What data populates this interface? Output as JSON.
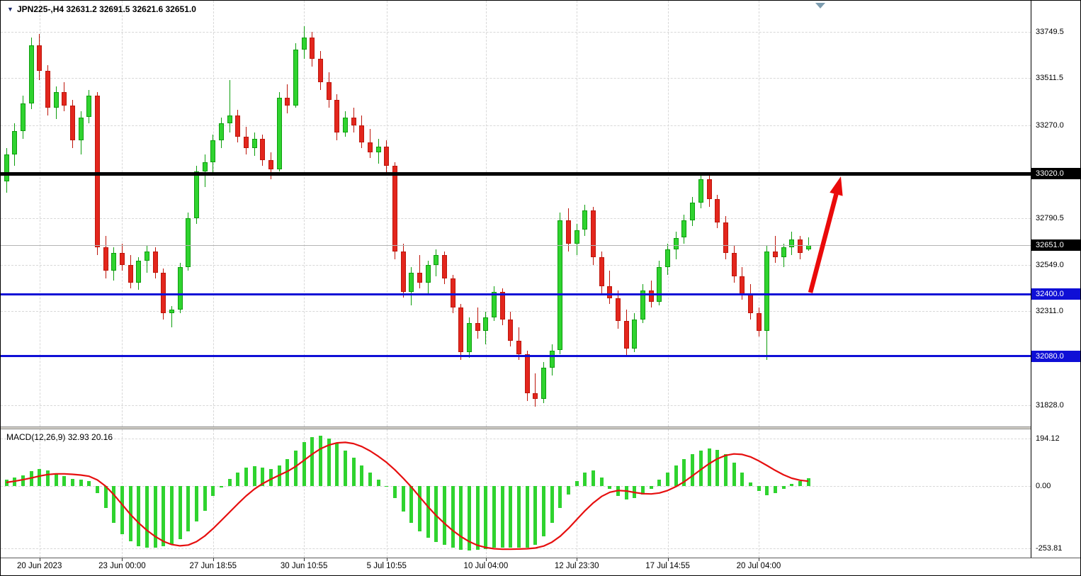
{
  "header": {
    "symbol_line": "JPN225-,H4 32631.2 32691.5 32621.6 32651.0"
  },
  "chart_data": [
    {
      "type": "candlestick",
      "title": "JPN225-,H4",
      "last_ohlc": {
        "open": 32631.2,
        "high": 32691.5,
        "low": 32621.6,
        "close": 32651.0
      },
      "ylim": [
        31718,
        33910
      ],
      "up_color": "#2fd32f",
      "down_color": "#e3261d",
      "up_wick_color": "#0d9e0d",
      "down_wick_color": "#bd150a",
      "y_ticks": [
        {
          "label": "33749.5",
          "value": 33749.5
        },
        {
          "label": "33511.5",
          "value": 33511.5
        },
        {
          "label": "33270.0",
          "value": 33270.0
        },
        {
          "label": "32790.5",
          "value": 32790.5
        },
        {
          "label": "32549.0",
          "value": 32549.0
        },
        {
          "label": "32311.0",
          "value": 32311.0
        },
        {
          "label": "31828.0",
          "value": 31828.0
        }
      ],
      "price_lines": [
        {
          "label": "33020.0",
          "value": 33020.0,
          "line_color": "#000000",
          "badge_color": "#000000",
          "thickness": 5
        },
        {
          "label": "32651.0",
          "value": 32651.0,
          "line_color": "#b4b4b4",
          "badge_color": "#000000",
          "thickness": 1
        },
        {
          "label": "32400.0",
          "value": 32400.0,
          "line_color": "#0f0fd6",
          "badge_color": "#0f0fd6",
          "thickness": 3
        },
        {
          "label": "32080.0",
          "value": 32080.0,
          "line_color": "#0f0fd6",
          "badge_color": "#0f0fd6",
          "thickness": 3
        }
      ],
      "x_ticks": [
        {
          "label": "20 Jun 2023",
          "index": 4
        },
        {
          "label": "23 Jun 00:00",
          "index": 14
        },
        {
          "label": "27 Jun 18:55",
          "index": 25
        },
        {
          "label": "30 Jun 10:55",
          "index": 36
        },
        {
          "label": "5 Jul 10:55",
          "index": 46
        },
        {
          "label": "10 Jul 04:00",
          "index": 58
        },
        {
          "label": "12 Jul 23:30",
          "index": 69
        },
        {
          "label": "17 Jul 14:55",
          "index": 80
        },
        {
          "label": "20 Jul 04:00",
          "index": 91
        }
      ],
      "candles": [
        [
          32980,
          33150,
          32920,
          33120
        ],
        [
          33120,
          33280,
          33060,
          33240
        ],
        [
          33240,
          33420,
          33200,
          33380
        ],
        [
          33380,
          33720,
          33350,
          33680
        ],
        [
          33680,
          33740,
          33500,
          33550
        ],
        [
          33550,
          33580,
          33320,
          33360
        ],
        [
          33360,
          33470,
          33300,
          33440
        ],
        [
          33440,
          33490,
          33340,
          33370
        ],
        [
          33370,
          33400,
          33150,
          33190
        ],
        [
          33190,
          33340,
          33120,
          33310
        ],
        [
          33310,
          33450,
          33280,
          33420
        ],
        [
          33420,
          33440,
          32600,
          32640
        ],
        [
          32640,
          32700,
          32480,
          32520
        ],
        [
          32520,
          32640,
          32470,
          32610
        ],
        [
          32610,
          32660,
          32520,
          32550
        ],
        [
          32550,
          32600,
          32430,
          32460
        ],
        [
          32460,
          32590,
          32420,
          32570
        ],
        [
          32570,
          32650,
          32510,
          32620
        ],
        [
          32620,
          32640,
          32480,
          32510
        ],
        [
          32510,
          32530,
          32270,
          32300
        ],
        [
          32300,
          32340,
          32230,
          32320
        ],
        [
          32320,
          32560,
          32300,
          32540
        ],
        [
          32540,
          32820,
          32520,
          32790
        ],
        [
          32790,
          33060,
          32760,
          33030
        ],
        [
          33030,
          33120,
          32950,
          33080
        ],
        [
          33080,
          33220,
          33010,
          33190
        ],
        [
          33190,
          33310,
          33150,
          33280
        ],
        [
          33280,
          33500,
          33230,
          33320
        ],
        [
          33320,
          33350,
          33180,
          33210
        ],
        [
          33210,
          33260,
          33120,
          33150
        ],
        [
          33150,
          33230,
          33110,
          33200
        ],
        [
          33200,
          33220,
          33060,
          33090
        ],
        [
          33090,
          33130,
          32990,
          33040
        ],
        [
          33040,
          33440,
          33030,
          33410
        ],
        [
          33410,
          33480,
          33330,
          33370
        ],
        [
          33370,
          33690,
          33360,
          33660
        ],
        [
          33660,
          33780,
          33610,
          33720
        ],
        [
          33720,
          33750,
          33570,
          33610
        ],
        [
          33610,
          33650,
          33450,
          33490
        ],
        [
          33490,
          33540,
          33360,
          33400
        ],
        [
          33400,
          33430,
          33190,
          33230
        ],
        [
          33230,
          33340,
          33210,
          33310
        ],
        [
          33310,
          33360,
          33230,
          33270
        ],
        [
          33270,
          33320,
          33150,
          33180
        ],
        [
          33180,
          33250,
          33100,
          33130
        ],
        [
          33130,
          33200,
          33070,
          33160
        ],
        [
          33160,
          33190,
          33020,
          33060
        ],
        [
          33060,
          33080,
          32580,
          32620
        ],
        [
          32620,
          32660,
          32380,
          32410
        ],
        [
          32410,
          32540,
          32340,
          32510
        ],
        [
          32510,
          32600,
          32430,
          32460
        ],
        [
          32460,
          32570,
          32400,
          32550
        ],
        [
          32550,
          32630,
          32490,
          32600
        ],
        [
          32600,
          32620,
          32450,
          32480
        ],
        [
          32480,
          32500,
          32300,
          32330
        ],
        [
          32330,
          32350,
          32060,
          32100
        ],
        [
          32100,
          32280,
          32070,
          32250
        ],
        [
          32250,
          32330,
          32170,
          32210
        ],
        [
          32210,
          32310,
          32140,
          32280
        ],
        [
          32280,
          32440,
          32260,
          32410
        ],
        [
          32410,
          32430,
          32240,
          32270
        ],
        [
          32270,
          32310,
          32130,
          32160
        ],
        [
          32160,
          32230,
          32060,
          32090
        ],
        [
          32090,
          32110,
          31850,
          31890
        ],
        [
          31890,
          31990,
          31820,
          31860
        ],
        [
          31860,
          32050,
          31840,
          32020
        ],
        [
          32020,
          32140,
          31980,
          32110
        ],
        [
          32110,
          32820,
          32090,
          32780
        ],
        [
          32780,
          32840,
          32620,
          32660
        ],
        [
          32660,
          32760,
          32600,
          32730
        ],
        [
          32730,
          32860,
          32700,
          32830
        ],
        [
          32830,
          32850,
          32550,
          32590
        ],
        [
          32590,
          32620,
          32400,
          32440
        ],
        [
          32440,
          32520,
          32350,
          32380
        ],
        [
          32380,
          32420,
          32220,
          32260
        ],
        [
          32260,
          32320,
          32080,
          32120
        ],
        [
          32120,
          32300,
          32100,
          32270
        ],
        [
          32270,
          32450,
          32250,
          32420
        ],
        [
          32420,
          32470,
          32330,
          32360
        ],
        [
          32360,
          32570,
          32340,
          32540
        ],
        [
          32540,
          32660,
          32500,
          32630
        ],
        [
          32630,
          32720,
          32580,
          32690
        ],
        [
          32690,
          32810,
          32660,
          32780
        ],
        [
          32780,
          32900,
          32750,
          32870
        ],
        [
          32870,
          33020,
          32840,
          32990
        ],
        [
          32990,
          33010,
          32850,
          32890
        ],
        [
          32890,
          32910,
          32740,
          32770
        ],
        [
          32770,
          32800,
          32580,
          32610
        ],
        [
          32610,
          32650,
          32460,
          32490
        ],
        [
          32490,
          32540,
          32370,
          32400
        ],
        [
          32400,
          32450,
          32270,
          32300
        ],
        [
          32300,
          32330,
          32180,
          32210
        ],
        [
          32210,
          32650,
          32060,
          32620
        ],
        [
          32620,
          32700,
          32560,
          32590
        ],
        [
          32590,
          32660,
          32540,
          32640
        ],
        [
          32640,
          32720,
          32600,
          32680
        ],
        [
          32680,
          32700,
          32580,
          32610
        ],
        [
          32631.2,
          32691.5,
          32621.6,
          32651.0
        ]
      ],
      "trend_arrow": {
        "from": [
          1143,
          412
        ],
        "to": [
          1186,
          248
        ],
        "color": "#ea0a0a"
      }
    },
    {
      "type": "bar",
      "title": "MACD(12,26,9) 32.93 20.16",
      "indicator": "MACD",
      "params": [
        12,
        26,
        9
      ],
      "macd_value": 32.93,
      "signal_value": 20.16,
      "ylim": [
        -291,
        231
      ],
      "histogram_color": "#2fd32f",
      "signal_color": "#e60f0f",
      "y_ticks": [
        {
          "label": "194.12",
          "value": 194.12
        },
        {
          "label": "0.00",
          "value": 0
        },
        {
          "label": "-253.81",
          "value": -253.81
        }
      ],
      "histogram": [
        25,
        35,
        45,
        60,
        70,
        65,
        50,
        40,
        30,
        25,
        20,
        -30,
        -90,
        -150,
        -195,
        -225,
        -245,
        -252,
        -250,
        -245,
        -235,
        -215,
        -185,
        -145,
        -100,
        -40,
        -5,
        30,
        55,
        75,
        80,
        75,
        70,
        85,
        110,
        145,
        180,
        200,
        205,
        195,
        175,
        145,
        115,
        85,
        55,
        25,
        0,
        -50,
        -105,
        -150,
        -185,
        -210,
        -228,
        -240,
        -252,
        -260,
        -262,
        -260,
        -256,
        -252,
        -250,
        -250,
        -252,
        -250,
        -240,
        -205,
        -150,
        -90,
        -35,
        20,
        55,
        65,
        35,
        -10,
        -40,
        -55,
        -50,
        -35,
        -10,
        25,
        55,
        85,
        110,
        130,
        145,
        152,
        148,
        130,
        95,
        55,
        15,
        -20,
        -36,
        -30,
        -12,
        8,
        22,
        33
      ],
      "signal": [
        15,
        20,
        26,
        33,
        41,
        47,
        50,
        50,
        48,
        45,
        40,
        25,
        0,
        -35,
        -75,
        -115,
        -150,
        -180,
        -205,
        -225,
        -238,
        -243,
        -240,
        -226,
        -203,
        -173,
        -140,
        -106,
        -72,
        -40,
        -12,
        10,
        28,
        44,
        60,
        80,
        105,
        130,
        152,
        167,
        176,
        178,
        173,
        161,
        143,
        121,
        96,
        66,
        32,
        -4,
        -44,
        -84,
        -120,
        -152,
        -181,
        -206,
        -226,
        -241,
        -250,
        -255,
        -257,
        -257,
        -256,
        -255,
        -252,
        -244,
        -228,
        -204,
        -172,
        -136,
        -100,
        -68,
        -42,
        -25,
        -18,
        -20,
        -26,
        -31,
        -32,
        -28,
        -18,
        -2,
        18,
        42,
        67,
        91,
        111,
        125,
        131,
        129,
        119,
        103,
        84,
        64,
        46,
        32,
        24,
        20
      ]
    }
  ]
}
